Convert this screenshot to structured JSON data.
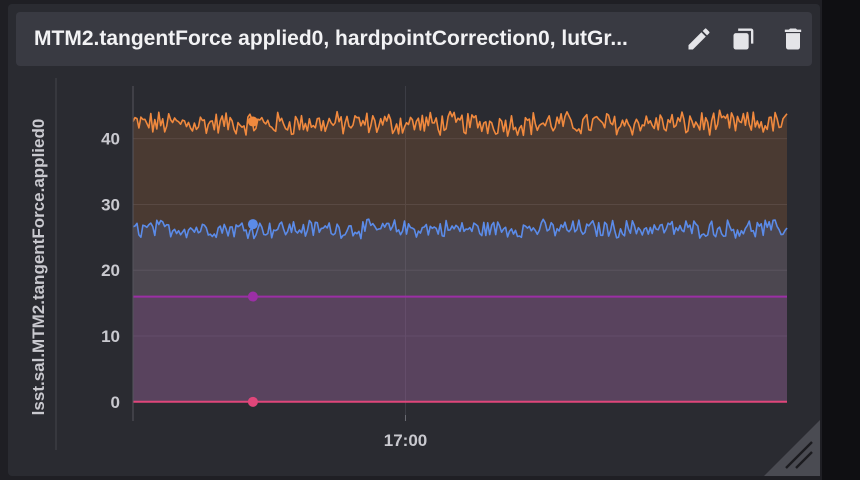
{
  "panel": {
    "title": "MTM2.tangentForce applied0, hardpointCorrection0, lutGr...",
    "buttons": {
      "edit": "pencil-icon",
      "duplicate": "copy-icon",
      "delete": "trash-icon"
    }
  },
  "colors": {
    "background": "#2a2b31",
    "header": "#393a42",
    "orange": "#f0893e",
    "blue": "#5b8be8",
    "purple": "#9b2fa5",
    "pink": "#e0467a"
  },
  "chart_data": {
    "type": "area",
    "ylabel": "lsst.sal.MTM2.tangentForce.applied0",
    "xlabel": "",
    "ylim": [
      -2,
      48
    ],
    "yticks": [
      0,
      10,
      20,
      30,
      40
    ],
    "xlim": [
      "16:35",
      "17:35"
    ],
    "xticks": [
      {
        "t": "17:00",
        "label": "17:00"
      }
    ],
    "grid": true,
    "series": [
      {
        "color": "#f0893e",
        "style": "noisy",
        "mean": 42.3,
        "amplitude": 1.6,
        "marker_t": "16:46",
        "marker_y": 42.6
      },
      {
        "color": "#5b8be8",
        "style": "noisy",
        "mean": 26.3,
        "amplitude": 1.2,
        "marker_t": "16:46",
        "marker_y": 27.0
      },
      {
        "color": "#9b2fa5",
        "style": "flat",
        "mean": 16.0,
        "amplitude": 0,
        "marker_t": "16:46",
        "marker_y": 16.0
      },
      {
        "color": "#e0467a",
        "style": "flat",
        "mean": 0.0,
        "amplitude": 0,
        "marker_t": "16:46",
        "marker_y": 0.0
      }
    ]
  }
}
